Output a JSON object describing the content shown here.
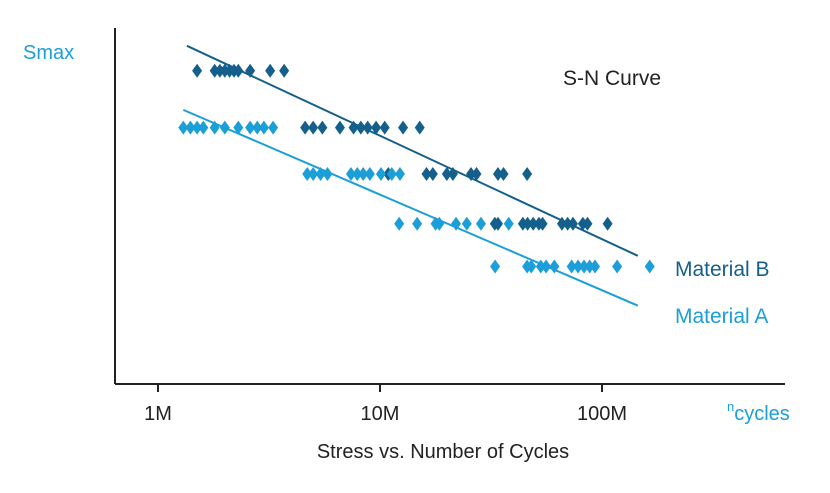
{
  "chart_data": {
    "type": "scatter",
    "title": "S-N Curve",
    "caption": "Stress vs. Number of Cycles",
    "ylabel": "Smax",
    "xlabel_superscript": "n",
    "xlabel": "cycles",
    "x_scale": "log",
    "xlim": [
      700000,
      700000000
    ],
    "x_ticks": [
      {
        "value": 1000000,
        "label": "1M"
      },
      {
        "value": 10000000,
        "label": "10M"
      },
      {
        "value": 100000000,
        "label": "100M"
      }
    ],
    "y_ticks": "none",
    "ylim": [
      0,
      100
    ],
    "grid": false,
    "colors": {
      "material_b": "#145f8c",
      "material_a": "#1c9fd8",
      "ylabel": "#1c9fd8"
    },
    "series": [
      {
        "name": "Material B",
        "color": "#145f8c",
        "marker": "diamond",
        "points": [
          [
            1500000,
            88
          ],
          [
            1800000,
            88
          ],
          [
            1900000,
            88
          ],
          [
            2000000,
            88
          ],
          [
            2100000,
            88
          ],
          [
            2200000,
            88
          ],
          [
            2300000,
            88
          ],
          [
            2600000,
            88
          ],
          [
            3200000,
            88
          ],
          [
            3700000,
            88
          ],
          [
            4600000,
            72
          ],
          [
            5000000,
            72
          ],
          [
            5500000,
            72
          ],
          [
            6600000,
            72
          ],
          [
            7600000,
            72
          ],
          [
            8200000,
            72
          ],
          [
            8800000,
            72
          ],
          [
            9600000,
            72
          ],
          [
            10500000,
            72
          ],
          [
            12700000,
            72
          ],
          [
            15100000,
            72
          ],
          [
            10900000,
            59
          ],
          [
            16200000,
            59
          ],
          [
            17300000,
            59
          ],
          [
            20000000,
            59
          ],
          [
            21300000,
            59
          ],
          [
            25700000,
            59
          ],
          [
            27200000,
            59
          ],
          [
            34000000,
            59
          ],
          [
            36000000,
            59
          ],
          [
            46000000,
            59
          ],
          [
            32900000,
            45
          ],
          [
            34000000,
            45
          ],
          [
            44000000,
            45
          ],
          [
            46200000,
            45
          ],
          [
            49000000,
            45
          ],
          [
            52000000,
            45
          ],
          [
            54000000,
            45
          ],
          [
            66000000,
            45
          ],
          [
            70000000,
            45
          ],
          [
            74000000,
            45
          ],
          [
            82000000,
            45
          ],
          [
            86000000,
            45
          ],
          [
            106000000,
            45
          ]
        ],
        "trend": [
          [
            1350000,
            95
          ],
          [
            145000000,
            36
          ]
        ]
      },
      {
        "name": "Material A",
        "color": "#1c9fd8",
        "marker": "diamond",
        "points": [
          [
            1300000,
            72
          ],
          [
            1400000,
            72
          ],
          [
            1500000,
            72
          ],
          [
            1600000,
            72
          ],
          [
            1800000,
            72
          ],
          [
            2000000,
            72
          ],
          [
            2300000,
            72
          ],
          [
            2600000,
            72
          ],
          [
            2800000,
            72
          ],
          [
            3000000,
            72
          ],
          [
            3300000,
            72
          ],
          [
            4700000,
            59
          ],
          [
            5000000,
            59
          ],
          [
            5400000,
            59
          ],
          [
            5800000,
            59
          ],
          [
            7400000,
            59
          ],
          [
            7900000,
            59
          ],
          [
            8400000,
            59
          ],
          [
            9000000,
            59
          ],
          [
            10100000,
            59
          ],
          [
            11300000,
            59
          ],
          [
            12300000,
            59
          ],
          [
            12200000,
            45
          ],
          [
            14700000,
            45
          ],
          [
            17800000,
            45
          ],
          [
            18500000,
            45
          ],
          [
            22000000,
            45
          ],
          [
            24600000,
            45
          ],
          [
            28500000,
            45
          ],
          [
            38000000,
            45
          ],
          [
            33000000,
            33
          ],
          [
            46000000,
            33
          ],
          [
            48000000,
            33
          ],
          [
            53000000,
            33
          ],
          [
            56000000,
            33
          ],
          [
            61000000,
            33
          ],
          [
            73000000,
            33
          ],
          [
            78000000,
            33
          ],
          [
            83000000,
            33
          ],
          [
            88000000,
            33
          ],
          [
            93000000,
            33
          ],
          [
            117000000,
            33
          ],
          [
            164000000,
            33
          ]
        ],
        "trend": [
          [
            1300000,
            77
          ],
          [
            145000000,
            22
          ]
        ]
      }
    ]
  }
}
